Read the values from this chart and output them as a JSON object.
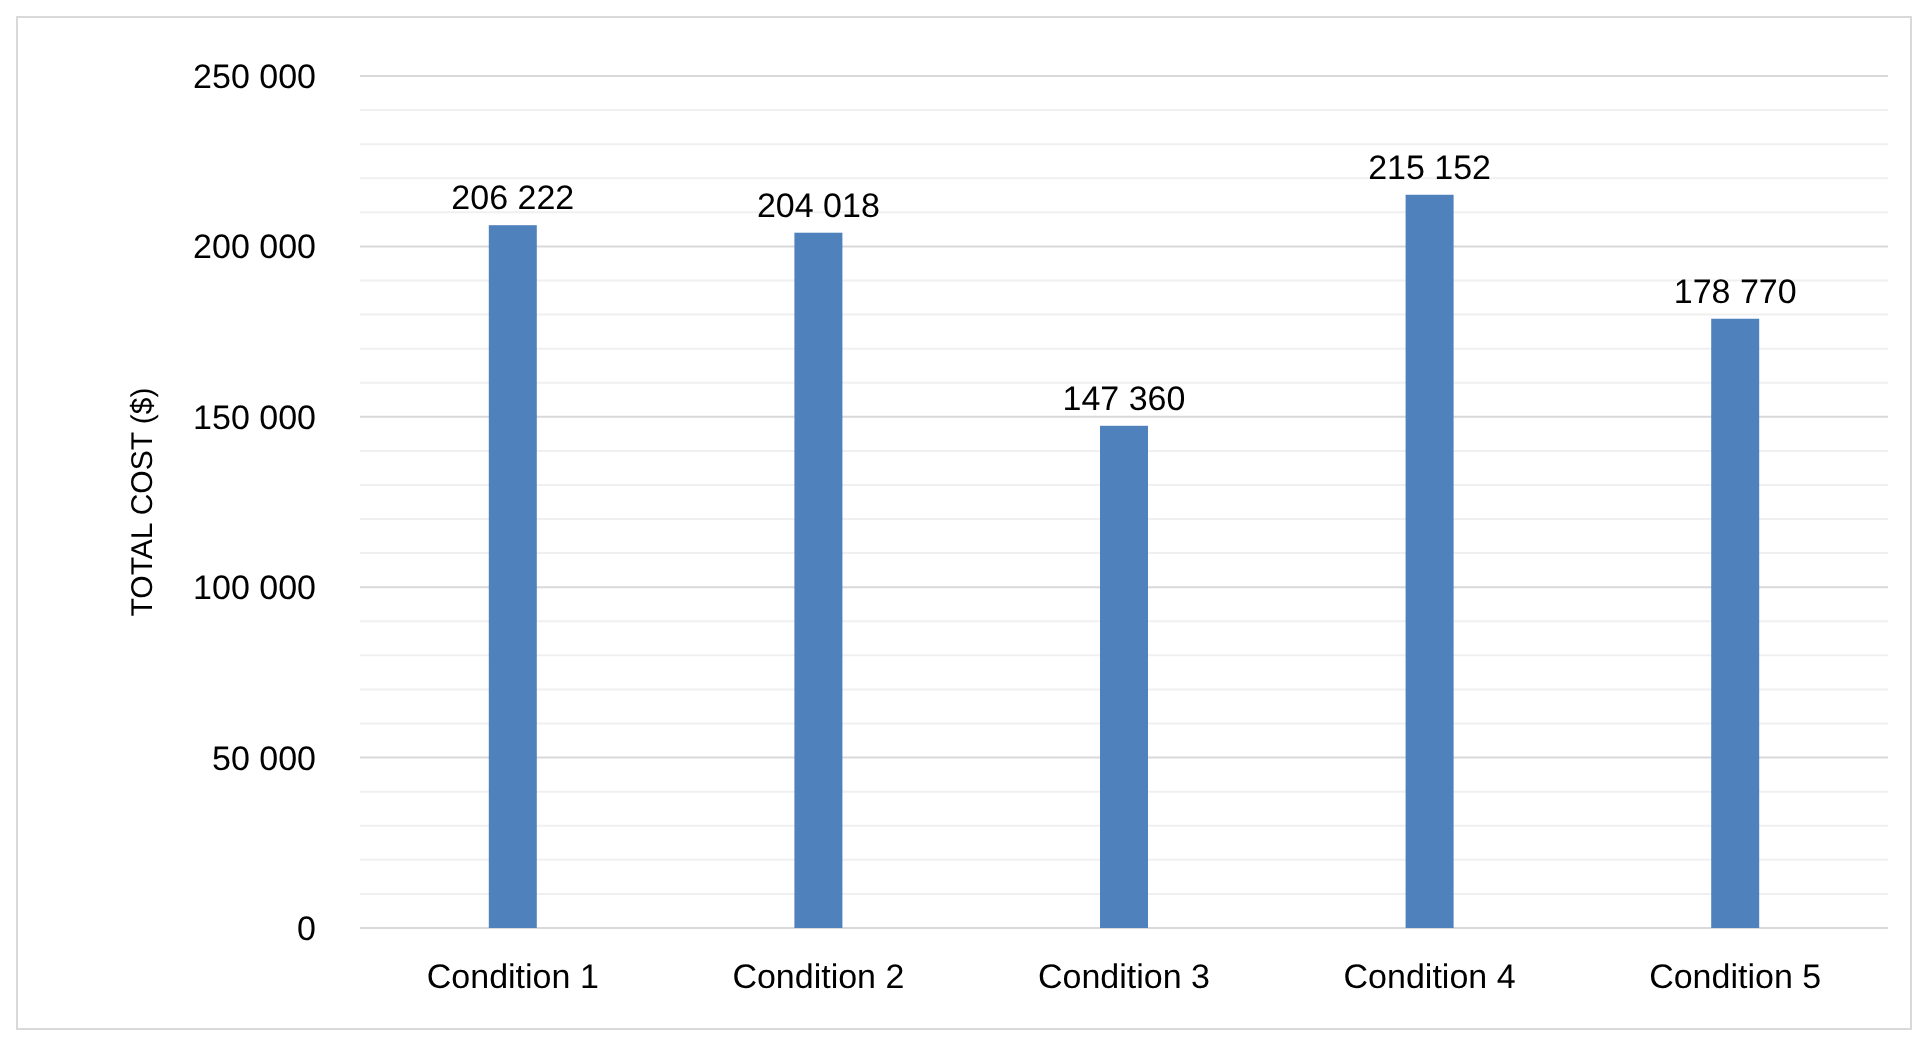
{
  "chart_data": {
    "type": "bar",
    "ylabel": "TOTAL COST ($)",
    "categories": [
      "Condition 1",
      "Condition 2",
      "Condition 3",
      "Condition 4",
      "Condition 5"
    ],
    "values": [
      206222,
      204018,
      147360,
      215152,
      178770
    ],
    "value_labels": [
      "206 222",
      "204 018",
      "147 360",
      "215 152",
      "178 770"
    ],
    "color": "#4f81bd",
    "ylim": [
      0,
      250000
    ],
    "yticks": [
      {
        "value": 0,
        "label": "0"
      },
      {
        "value": 10000,
        "label": null
      },
      {
        "value": 20000,
        "label": null
      },
      {
        "value": 30000,
        "label": null
      },
      {
        "value": 40000,
        "label": null
      },
      {
        "value": 50000,
        "label": "50 000"
      },
      {
        "value": 60000,
        "label": null
      },
      {
        "value": 70000,
        "label": null
      },
      {
        "value": 80000,
        "label": null
      },
      {
        "value": 90000,
        "label": null
      },
      {
        "value": 100000,
        "label": "100 000"
      },
      {
        "value": 110000,
        "label": null
      },
      {
        "value": 120000,
        "label": null
      },
      {
        "value": 130000,
        "label": null
      },
      {
        "value": 140000,
        "label": null
      },
      {
        "value": 150000,
        "label": "150 000"
      },
      {
        "value": 160000,
        "label": null
      },
      {
        "value": 170000,
        "label": null
      },
      {
        "value": 180000,
        "label": null
      },
      {
        "value": 190000,
        "label": null
      },
      {
        "value": 200000,
        "label": "200 000"
      },
      {
        "value": 210000,
        "label": null
      },
      {
        "value": 220000,
        "label": null
      },
      {
        "value": 230000,
        "label": null
      },
      {
        "value": 240000,
        "label": null
      },
      {
        "value": 250000,
        "label": "250 000"
      }
    ],
    "grid": true
  }
}
